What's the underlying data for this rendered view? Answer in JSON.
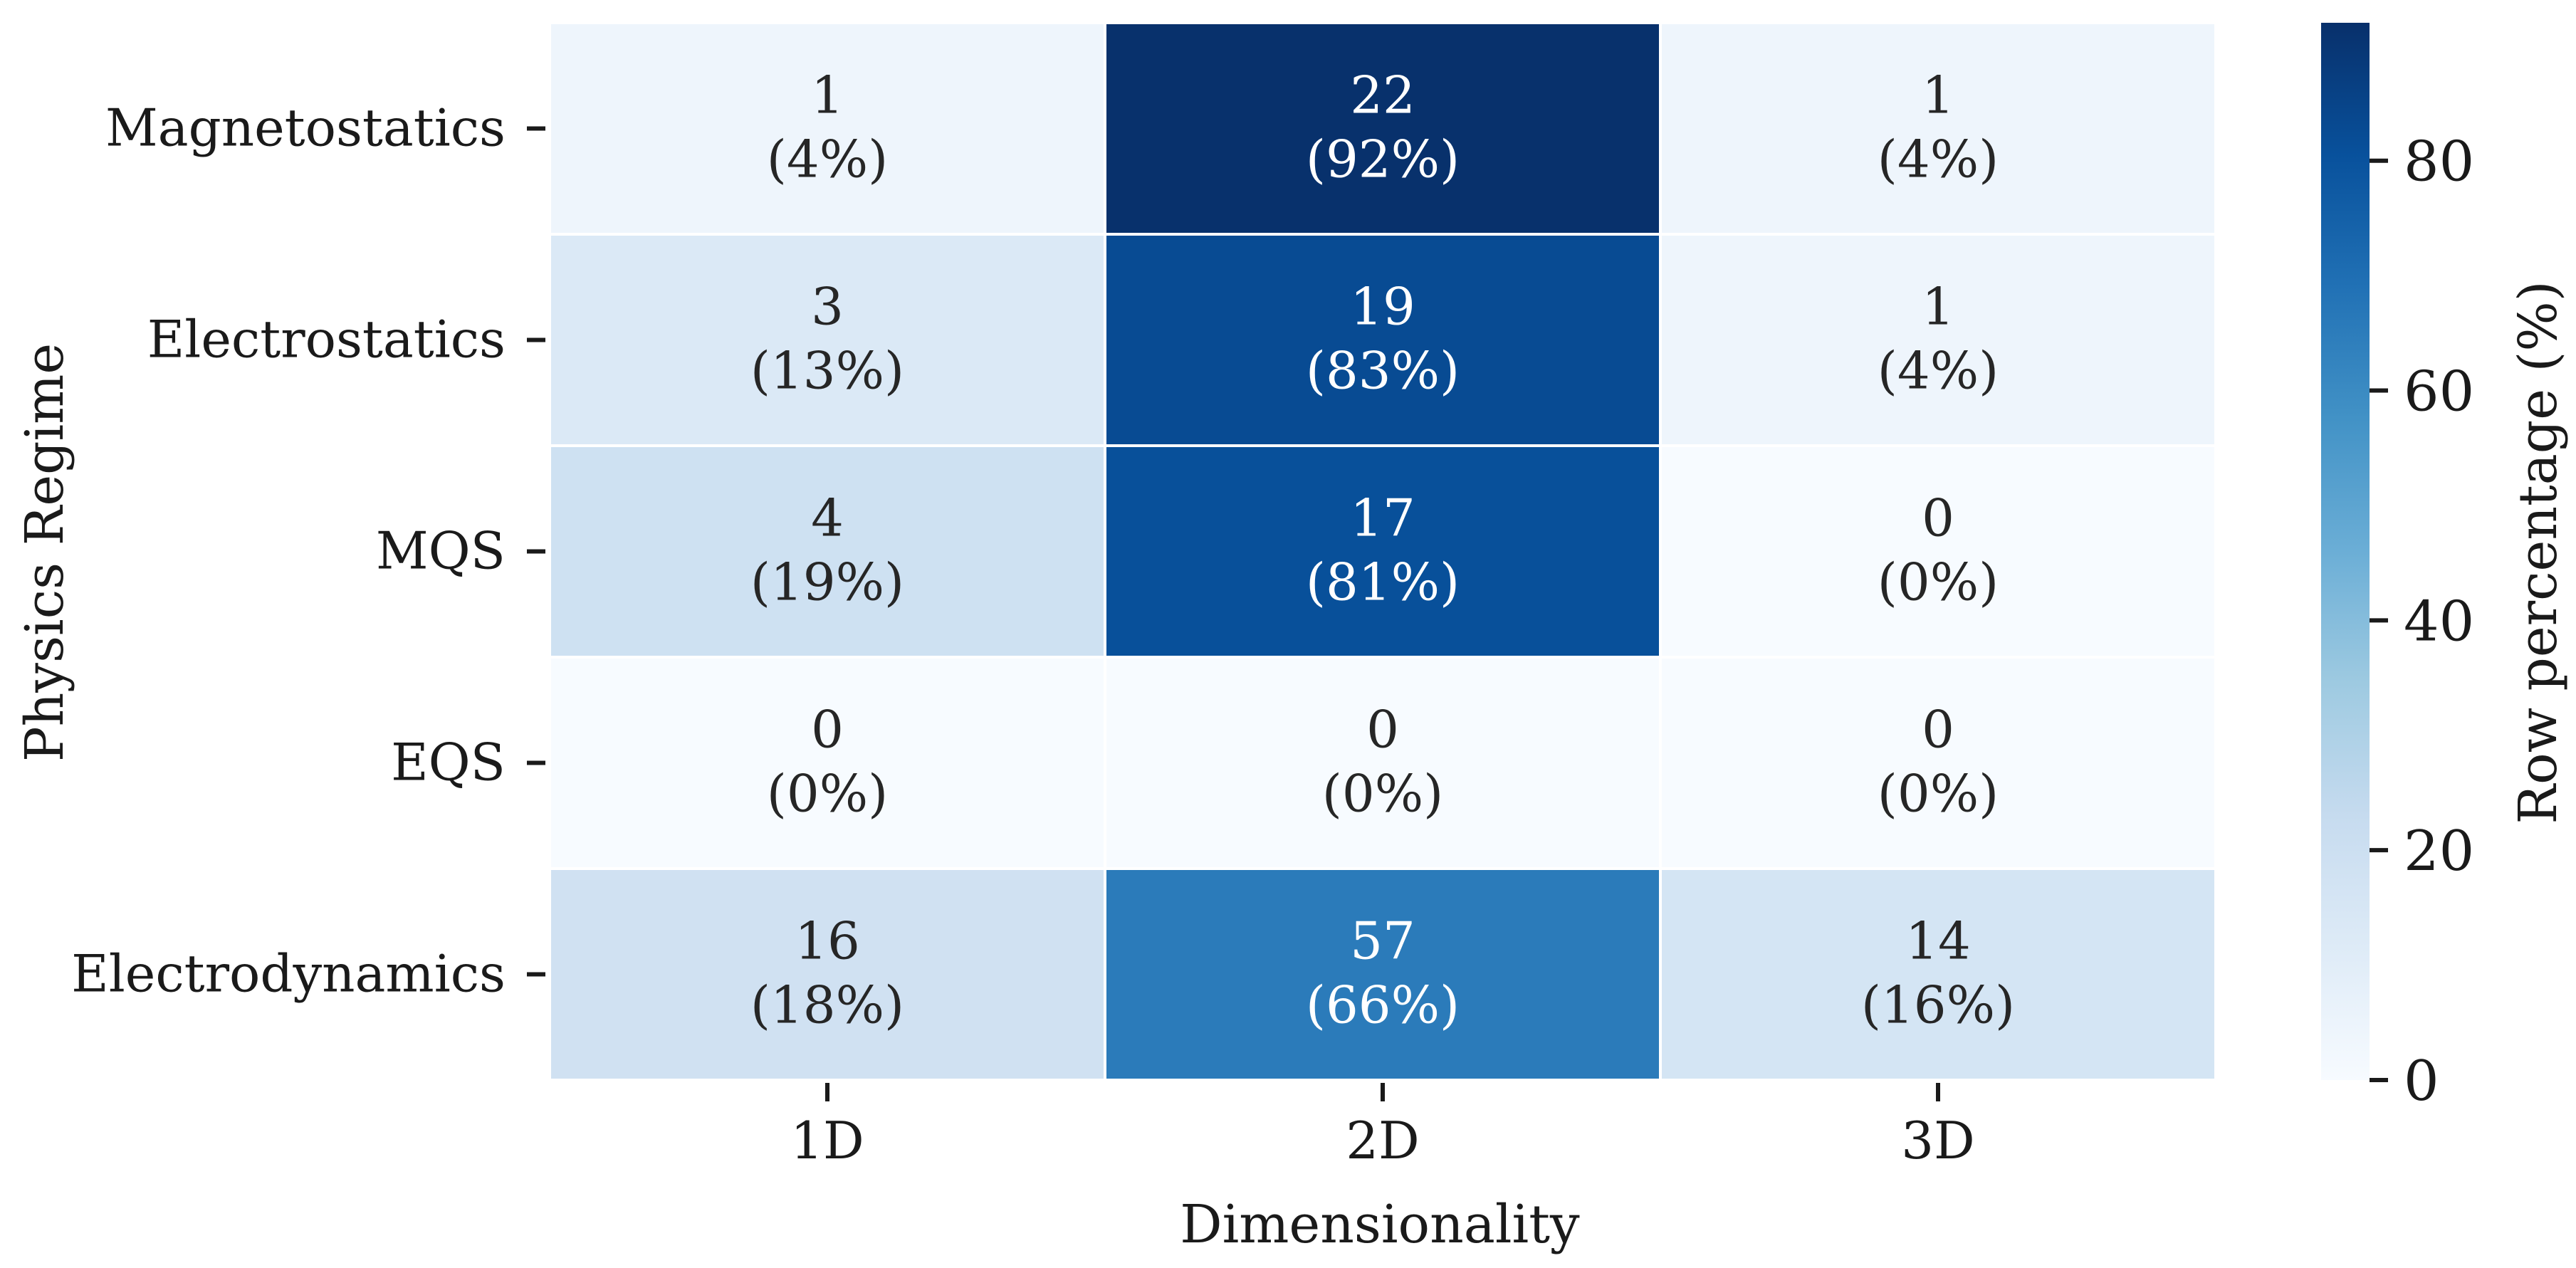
{
  "chart_data": {
    "type": "heatmap",
    "title": "",
    "xlabel": "Dimensionality",
    "ylabel": "Physics Regime",
    "colorbar_label": "Row percentage (%)",
    "colorbar_ticks": [
      0,
      20,
      40,
      60,
      80
    ],
    "color_range": [
      0,
      92
    ],
    "colormap": "Blues",
    "grid": false,
    "x_categories": [
      "1D",
      "2D",
      "3D"
    ],
    "y_categories": [
      "Magnetostatics",
      "Electrostatics",
      "MQS",
      "EQS",
      "Electrodynamics"
    ],
    "counts": [
      [
        1,
        22,
        1
      ],
      [
        3,
        19,
        1
      ],
      [
        4,
        17,
        0
      ],
      [
        0,
        0,
        0
      ],
      [
        16,
        57,
        14
      ]
    ],
    "percent_labels": [
      [
        "(4%)",
        "(92%)",
        "(4%)"
      ],
      [
        "(13%)",
        "(83%)",
        "(4%)"
      ],
      [
        "(19%)",
        "(81%)",
        "(0%)"
      ],
      [
        "(0%)",
        "(0%)",
        "(0%)"
      ],
      [
        "(18%)",
        "(66%)",
        "(16%)"
      ]
    ],
    "row_percentages": [
      [
        4.2,
        91.7,
        4.2
      ],
      [
        13.0,
        82.6,
        4.3
      ],
      [
        19.0,
        81.0,
        0.0
      ],
      [
        0.0,
        0.0,
        0.0
      ],
      [
        18.4,
        65.5,
        16.1
      ]
    ]
  },
  "colors": {
    "low": "#f7fbff",
    "high": "#08306b",
    "dark_text": "#262626",
    "light_text": "#ffffff"
  }
}
